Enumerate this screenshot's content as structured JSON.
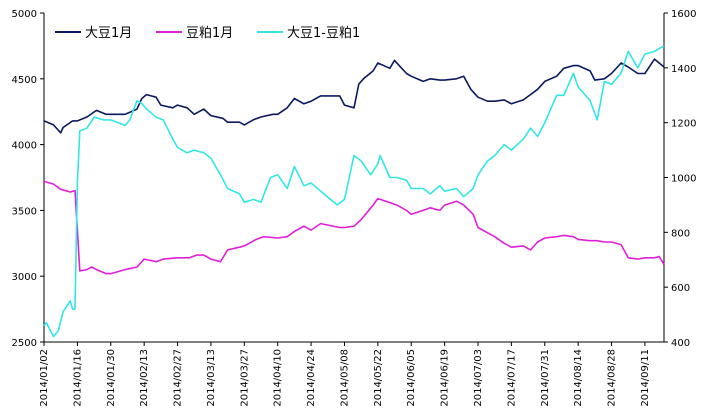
{
  "chart_data": {
    "type": "line",
    "title": "",
    "xlabel": "",
    "ylabel_left": "",
    "ylabel_right": "",
    "ylim_left": [
      2500,
      5000
    ],
    "ylim_right": [
      400,
      1600
    ],
    "yticks_left": [
      "5000",
      "4500",
      "4000",
      "3500",
      "3000",
      "2500"
    ],
    "yticks_right": [
      "1600",
      "1400",
      "1200",
      "1000",
      "800",
      "600",
      "400"
    ],
    "x_ticks": [
      "2014/01/02",
      "2014/01/16",
      "2014/01/30",
      "2014/02/13",
      "2014/02/27",
      "2014/03/13",
      "2014/03/27",
      "2014/04/10",
      "2014/04/24",
      "2014/05/08",
      "2014/05/22",
      "2014/06/05",
      "2014/06/19",
      "2014/07/03",
      "2014/07/17",
      "2014/07/31",
      "2014/08/14",
      "2014/08/28",
      "2014/09/11"
    ],
    "x_range": [
      "2014/01/02",
      "2014/09/19"
    ],
    "grid": false,
    "legend_position": "top-left",
    "series": [
      {
        "name": "大豆1月",
        "axis": "left",
        "color": "#0b1a5e",
        "points": [
          [
            "2014/01/02",
            4180
          ],
          [
            "2014/01/06",
            4150
          ],
          [
            "2014/01/09",
            4090
          ],
          [
            "2014/01/10",
            4130
          ],
          [
            "2014/01/14",
            4180
          ],
          [
            "2014/01/16",
            4180
          ],
          [
            "2014/01/20",
            4210
          ],
          [
            "2014/01/24",
            4260
          ],
          [
            "2014/01/28",
            4230
          ],
          [
            "2014/01/30",
            4230
          ],
          [
            "2014/02/05",
            4230
          ],
          [
            "2014/02/10",
            4270
          ],
          [
            "2014/02/12",
            4350
          ],
          [
            "2014/02/14",
            4380
          ],
          [
            "2014/02/18",
            4360
          ],
          [
            "2014/02/20",
            4300
          ],
          [
            "2014/02/25",
            4280
          ],
          [
            "2014/02/27",
            4300
          ],
          [
            "2014/03/03",
            4280
          ],
          [
            "2014/03/06",
            4230
          ],
          [
            "2014/03/10",
            4270
          ],
          [
            "2014/03/13",
            4220
          ],
          [
            "2014/03/18",
            4200
          ],
          [
            "2014/03/20",
            4170
          ],
          [
            "2014/03/25",
            4170
          ],
          [
            "2014/03/27",
            4150
          ],
          [
            "2014/03/31",
            4190
          ],
          [
            "2014/04/03",
            4210
          ],
          [
            "2014/04/08",
            4230
          ],
          [
            "2014/04/10",
            4230
          ],
          [
            "2014/04/14",
            4280
          ],
          [
            "2014/04/17",
            4350
          ],
          [
            "2014/04/21",
            4310
          ],
          [
            "2014/04/24",
            4330
          ],
          [
            "2014/04/28",
            4370
          ],
          [
            "2014/05/06",
            4370
          ],
          [
            "2014/05/08",
            4300
          ],
          [
            "2014/05/12",
            4280
          ],
          [
            "2014/05/14",
            4460
          ],
          [
            "2014/05/16",
            4500
          ],
          [
            "2014/05/20",
            4560
          ],
          [
            "2014/05/22",
            4620
          ],
          [
            "2014/05/27",
            4580
          ],
          [
            "2014/05/29",
            4640
          ],
          [
            "2014/06/03",
            4540
          ],
          [
            "2014/06/05",
            4520
          ],
          [
            "2014/06/10",
            4480
          ],
          [
            "2014/06/13",
            4500
          ],
          [
            "2014/06/17",
            4490
          ],
          [
            "2014/06/19",
            4490
          ],
          [
            "2014/06/24",
            4500
          ],
          [
            "2014/06/27",
            4520
          ],
          [
            "2014/06/30",
            4420
          ],
          [
            "2014/07/03",
            4360
          ],
          [
            "2014/07/07",
            4330
          ],
          [
            "2014/07/10",
            4330
          ],
          [
            "2014/07/14",
            4340
          ],
          [
            "2014/07/17",
            4310
          ],
          [
            "2014/07/22",
            4340
          ],
          [
            "2014/07/25",
            4380
          ],
          [
            "2014/07/28",
            4420
          ],
          [
            "2014/07/31",
            4480
          ],
          [
            "2014/08/05",
            4520
          ],
          [
            "2014/08/08",
            4580
          ],
          [
            "2014/08/12",
            4600
          ],
          [
            "2014/08/14",
            4600
          ],
          [
            "2014/08/19",
            4560
          ],
          [
            "2014/08/21",
            4490
          ],
          [
            "2014/08/25",
            4500
          ],
          [
            "2014/08/28",
            4540
          ],
          [
            "2014/09/01",
            4620
          ],
          [
            "2014/09/04",
            4590
          ],
          [
            "2014/09/08",
            4540
          ],
          [
            "2014/09/11",
            4540
          ],
          [
            "2014/09/15",
            4650
          ],
          [
            "2014/09/19",
            4590
          ]
        ]
      },
      {
        "name": "豆粕1月",
        "axis": "left",
        "color": "#e020d8",
        "points": [
          [
            "2014/01/02",
            3720
          ],
          [
            "2014/01/06",
            3700
          ],
          [
            "2014/01/09",
            3660
          ],
          [
            "2014/01/13",
            3640
          ],
          [
            "2014/01/15",
            3650
          ],
          [
            "2014/01/16",
            3350
          ],
          [
            "2014/01/17",
            3040
          ],
          [
            "2014/01/20",
            3050
          ],
          [
            "2014/01/22",
            3070
          ],
          [
            "2014/01/24",
            3050
          ],
          [
            "2014/01/28",
            3020
          ],
          [
            "2014/01/30",
            3020
          ],
          [
            "2014/02/05",
            3050
          ],
          [
            "2014/02/10",
            3070
          ],
          [
            "2014/02/13",
            3130
          ],
          [
            "2014/02/18",
            3110
          ],
          [
            "2014/02/21",
            3130
          ],
          [
            "2014/02/27",
            3140
          ],
          [
            "2014/03/04",
            3140
          ],
          [
            "2014/03/07",
            3160
          ],
          [
            "2014/03/10",
            3160
          ],
          [
            "2014/03/13",
            3130
          ],
          [
            "2014/03/17",
            3110
          ],
          [
            "2014/03/20",
            3200
          ],
          [
            "2014/03/25",
            3220
          ],
          [
            "2014/03/27",
            3230
          ],
          [
            "2014/04/01",
            3280
          ],
          [
            "2014/04/04",
            3300
          ],
          [
            "2014/04/10",
            3290
          ],
          [
            "2014/04/14",
            3300
          ],
          [
            "2014/04/17",
            3340
          ],
          [
            "2014/04/21",
            3380
          ],
          [
            "2014/04/24",
            3350
          ],
          [
            "2014/04/28",
            3400
          ],
          [
            "2014/05/06",
            3370
          ],
          [
            "2014/05/08",
            3370
          ],
          [
            "2014/05/12",
            3380
          ],
          [
            "2014/05/15",
            3430
          ],
          [
            "2014/05/20",
            3540
          ],
          [
            "2014/05/22",
            3590
          ],
          [
            "2014/05/27",
            3560
          ],
          [
            "2014/05/30",
            3540
          ],
          [
            "2014/06/03",
            3500
          ],
          [
            "2014/06/05",
            3470
          ],
          [
            "2014/06/10",
            3500
          ],
          [
            "2014/06/13",
            3520
          ],
          [
            "2014/06/17",
            3500
          ],
          [
            "2014/06/19",
            3540
          ],
          [
            "2014/06/24",
            3570
          ],
          [
            "2014/06/27",
            3540
          ],
          [
            "2014/07/01",
            3470
          ],
          [
            "2014/07/03",
            3370
          ],
          [
            "2014/07/07",
            3330
          ],
          [
            "2014/07/10",
            3300
          ],
          [
            "2014/07/14",
            3250
          ],
          [
            "2014/07/17",
            3220
          ],
          [
            "2014/07/22",
            3230
          ],
          [
            "2014/07/25",
            3200
          ],
          [
            "2014/07/28",
            3260
          ],
          [
            "2014/07/31",
            3290
          ],
          [
            "2014/08/05",
            3300
          ],
          [
            "2014/08/08",
            3310
          ],
          [
            "2014/08/12",
            3300
          ],
          [
            "2014/08/14",
            3280
          ],
          [
            "2014/08/19",
            3270
          ],
          [
            "2014/08/22",
            3270
          ],
          [
            "2014/08/25",
            3260
          ],
          [
            "2014/08/28",
            3260
          ],
          [
            "2014/09/01",
            3240
          ],
          [
            "2014/09/04",
            3140
          ],
          [
            "2014/09/08",
            3130
          ],
          [
            "2014/09/11",
            3140
          ],
          [
            "2014/09/15",
            3140
          ],
          [
            "2014/09/17",
            3150
          ],
          [
            "2014/09/19",
            3090
          ]
        ]
      },
      {
        "name": "大豆1-豆粕1",
        "axis": "right",
        "color": "#33e6e6",
        "points": [
          [
            "2014/01/02",
            460
          ],
          [
            "2014/01/03",
            470
          ],
          [
            "2014/01/06",
            420
          ],
          [
            "2014/01/08",
            440
          ],
          [
            "2014/01/10",
            510
          ],
          [
            "2014/01/13",
            550
          ],
          [
            "2014/01/14",
            520
          ],
          [
            "2014/01/15",
            520
          ],
          [
            "2014/01/16",
            980
          ],
          [
            "2014/01/17",
            1170
          ],
          [
            "2014/01/20",
            1180
          ],
          [
            "2014/01/23",
            1220
          ],
          [
            "2014/01/27",
            1210
          ],
          [
            "2014/01/30",
            1210
          ],
          [
            "2014/02/05",
            1190
          ],
          [
            "2014/02/07",
            1210
          ],
          [
            "2014/02/10",
            1280
          ],
          [
            "2014/02/12",
            1270
          ],
          [
            "2014/02/14",
            1250
          ],
          [
            "2014/02/18",
            1220
          ],
          [
            "2014/02/21",
            1210
          ],
          [
            "2014/02/25",
            1140
          ],
          [
            "2014/02/27",
            1110
          ],
          [
            "2014/03/03",
            1090
          ],
          [
            "2014/03/06",
            1100
          ],
          [
            "2014/03/10",
            1090
          ],
          [
            "2014/03/13",
            1070
          ],
          [
            "2014/03/17",
            1010
          ],
          [
            "2014/03/20",
            960
          ],
          [
            "2014/03/25",
            940
          ],
          [
            "2014/03/27",
            910
          ],
          [
            "2014/03/31",
            920
          ],
          [
            "2014/04/03",
            910
          ],
          [
            "2014/04/07",
            1000
          ],
          [
            "2014/04/10",
            1010
          ],
          [
            "2014/04/14",
            960
          ],
          [
            "2014/04/17",
            1040
          ],
          [
            "2014/04/21",
            970
          ],
          [
            "2014/04/24",
            980
          ],
          [
            "2014/04/28",
            950
          ],
          [
            "2014/05/05",
            900
          ],
          [
            "2014/05/08",
            920
          ],
          [
            "2014/05/12",
            1080
          ],
          [
            "2014/05/15",
            1060
          ],
          [
            "2014/05/19",
            1010
          ],
          [
            "2014/05/22",
            1050
          ],
          [
            "2014/05/23",
            1080
          ],
          [
            "2014/05/27",
            1000
          ],
          [
            "2014/05/30",
            1000
          ],
          [
            "2014/06/03",
            990
          ],
          [
            "2014/06/05",
            960
          ],
          [
            "2014/06/10",
            960
          ],
          [
            "2014/06/13",
            940
          ],
          [
            "2014/06/17",
            970
          ],
          [
            "2014/06/19",
            950
          ],
          [
            "2014/06/24",
            960
          ],
          [
            "2014/06/27",
            930
          ],
          [
            "2014/07/01",
            960
          ],
          [
            "2014/07/03",
            1010
          ],
          [
            "2014/07/07",
            1060
          ],
          [
            "2014/07/10",
            1080
          ],
          [
            "2014/07/14",
            1120
          ],
          [
            "2014/07/17",
            1100
          ],
          [
            "2014/07/22",
            1140
          ],
          [
            "2014/07/25",
            1180
          ],
          [
            "2014/07/28",
            1150
          ],
          [
            "2014/07/31",
            1200
          ],
          [
            "2014/08/05",
            1300
          ],
          [
            "2014/08/08",
            1300
          ],
          [
            "2014/08/12",
            1380
          ],
          [
            "2014/08/14",
            1330
          ],
          [
            "2014/08/19",
            1280
          ],
          [
            "2014/08/22",
            1210
          ],
          [
            "2014/08/25",
            1350
          ],
          [
            "2014/08/28",
            1340
          ],
          [
            "2014/09/01",
            1380
          ],
          [
            "2014/09/04",
            1460
          ],
          [
            "2014/09/08",
            1400
          ],
          [
            "2014/09/11",
            1450
          ],
          [
            "2014/09/15",
            1460
          ],
          [
            "2014/09/17",
            1470
          ],
          [
            "2014/09/19",
            1480
          ]
        ]
      }
    ]
  }
}
